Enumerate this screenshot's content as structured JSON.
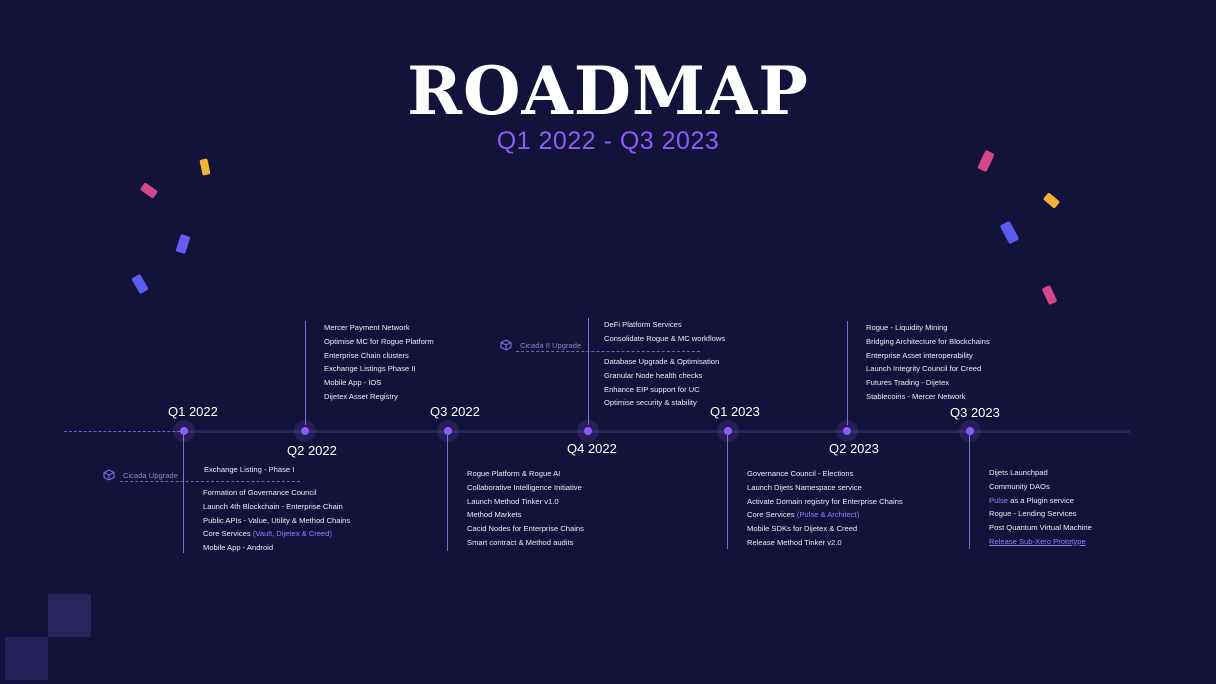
{
  "title": "ROADMAP",
  "subtitle": "Q1 2022 - Q3 2023",
  "colors": {
    "background": "#13123a",
    "accent": "#8b5cf6",
    "text": "#ffffff"
  },
  "quarters": [
    {
      "label": "Q1 2022",
      "items": [
        {
          "text": "Formation of Governance Council"
        },
        {
          "text": "Launch 4th Blockchain - Enterprise Chain"
        },
        {
          "text": "Public APIs - Value, Utility & Method Chains"
        },
        {
          "text": "Core Services ",
          "highlight": "(Vault, Dijetex & Creed)"
        },
        {
          "text": "Mobile App - Android"
        }
      ]
    },
    {
      "label": "Q2 2022",
      "items": [
        {
          "text": "Mercer Payment Network"
        },
        {
          "text": "Optimise MC for Rogue Platform"
        },
        {
          "text": "Enterprise Chain clusters"
        },
        {
          "text": "Exchange  Listings Phase II"
        },
        {
          "text": "Mobile App - IOS"
        },
        {
          "text": "Dijetex Asset Registry"
        }
      ]
    },
    {
      "label": "Q3 2022",
      "items": [
        {
          "text": "Rogue Platform & Rogue AI"
        },
        {
          "text": "Collaborative Intelligence Initiative"
        },
        {
          "text": "Launch  Method Tinker v1.0"
        },
        {
          "text": "Method Markets"
        },
        {
          "text": "Cacid Nodes for Enterprise Chains"
        },
        {
          "text": "Smart contract & Method audits"
        }
      ]
    },
    {
      "label": "Q4 2022",
      "items": [
        {
          "text": "DeFi Platform Services"
        },
        {
          "text": "Consolidate Rogue & MC workflows"
        },
        {
          "text": "Database Upgrade & Optimisation"
        },
        {
          "text": "Granular Node health checks"
        },
        {
          "text": "Enhance EIP support for UC"
        },
        {
          "text": "Optimise security & stability"
        }
      ]
    },
    {
      "label": "Q1 2023",
      "items": [
        {
          "text": "Governance Council - Elections"
        },
        {
          "text": "Launch Dijets Namespace service"
        },
        {
          "text": "Activate Domain registry for Enterprise Chains"
        },
        {
          "text": "Core Services ",
          "highlight": "(Pulse & Architect)"
        },
        {
          "text": "Mobile SDKs for Dijetex & Creed"
        },
        {
          "text": "Release Method Tinker v2.0"
        }
      ]
    },
    {
      "label": "Q2 2023",
      "items": [
        {
          "text": "Rogue - Liquidity Mining"
        },
        {
          "text": "Bridging Architecture for Blockchains"
        },
        {
          "text": "Enterprise Asset interoperability"
        },
        {
          "text": "Launch Integrity Council for Creed"
        },
        {
          "text": "Futures Trading - Dijetex"
        },
        {
          "text": "Stablecoins - Mercer Network"
        }
      ]
    },
    {
      "label": "Q3 2023",
      "items": [
        {
          "text": "Dijets Launchpad"
        },
        {
          "text": "Community DAOs"
        },
        {
          "text": " as a Plugin service",
          "lead_highlight": "Pulse"
        },
        {
          "text": "Rogue - Lending Services"
        },
        {
          "text": "Post Quantum Virtual Machine"
        },
        {
          "text": "",
          "underline_highlight": "Release Sub-Xero Prototype"
        }
      ]
    }
  ],
  "upgrades": {
    "q1": {
      "label": "Cicada  Upgrade",
      "after": "Exchange Listing - Phase I"
    },
    "q4": {
      "label": "Cicada II  Upgrade"
    }
  },
  "confetti_colors": [
    "#d6478a",
    "#f2b233",
    "#5a5cf0"
  ]
}
